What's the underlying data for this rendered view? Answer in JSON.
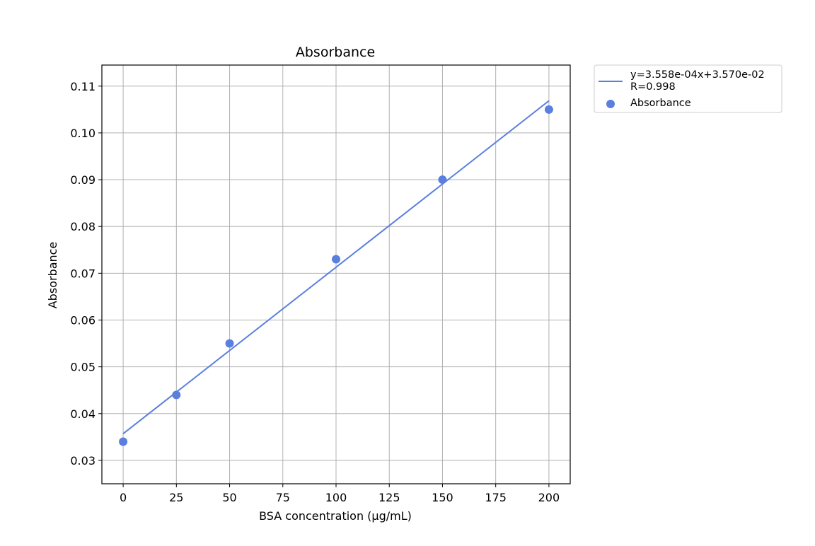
{
  "chart_data": {
    "type": "scatter",
    "title": "Absorbance",
    "xlabel": "BSA concentration (µg/mL)",
    "ylabel": "Absorbance",
    "xlim": [
      -10,
      210
    ],
    "ylim": [
      0.025,
      0.1145
    ],
    "xticks": [
      0,
      25,
      50,
      75,
      100,
      125,
      150,
      175,
      200
    ],
    "yticks": [
      0.03,
      0.04,
      0.05,
      0.06,
      0.07,
      0.08,
      0.09,
      0.1,
      0.11
    ],
    "xtick_labels": [
      "0",
      "25",
      "50",
      "75",
      "100",
      "125",
      "150",
      "175",
      "200"
    ],
    "ytick_labels": [
      "0.03",
      "0.04",
      "0.05",
      "0.06",
      "0.07",
      "0.08",
      "0.09",
      "0.10",
      "0.11"
    ],
    "grid": true,
    "legend_position": "outside-top-right",
    "series": [
      {
        "name": "Absorbance",
        "kind": "scatter",
        "color": "#5b7fde",
        "x": [
          0,
          25,
          50,
          100,
          150,
          200
        ],
        "y": [
          0.034,
          0.044,
          0.055,
          0.073,
          0.09,
          0.105
        ]
      },
      {
        "name": "y=3.558e-04x+3.570e-02\nR=0.998",
        "kind": "line",
        "color": "#5b7fde",
        "slope": 0.0003558,
        "intercept": 0.0357,
        "x": [
          0,
          200
        ]
      }
    ],
    "legend": {
      "fit_line1": "y=3.558e-04x+3.570e-02",
      "fit_line2": "R=0.998",
      "points_label": "Absorbance"
    }
  }
}
